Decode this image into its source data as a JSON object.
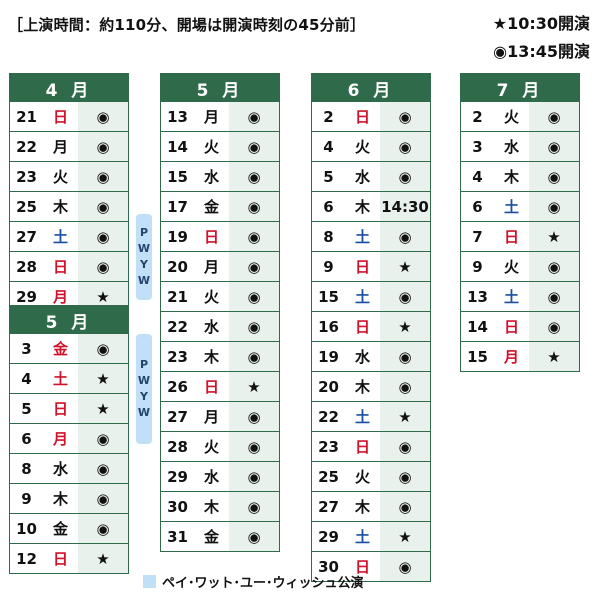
{
  "header": "［上演時間：約110分、開場は開演時刻の45分前］",
  "legend": [
    {
      "symbol": "★",
      "text": "10:30開演"
    },
    {
      "symbol": "◉",
      "text": "13:45開演"
    }
  ],
  "pwyw_label": [
    "P",
    "W",
    "Y",
    "W"
  ],
  "footer": "ペイ･ワット･ユー･ウィッシュ公演",
  "months": [
    {
      "title": "4 月",
      "rows": [
        {
          "day": "21",
          "wd": "日",
          "c": "red",
          "s": "◉"
        },
        {
          "day": "22",
          "wd": "月",
          "c": "",
          "s": "◉"
        },
        {
          "day": "23",
          "wd": "火",
          "c": "",
          "s": "◉"
        },
        {
          "day": "25",
          "wd": "木",
          "c": "",
          "s": "◉"
        },
        {
          "day": "27",
          "wd": "土",
          "c": "blue",
          "s": "◉"
        },
        {
          "day": "28",
          "wd": "日",
          "c": "red",
          "s": "◉"
        },
        {
          "day": "29",
          "wd": "月",
          "c": "red",
          "s": "★"
        }
      ]
    },
    {
      "title": "5 月",
      "rows": [
        {
          "day": "3",
          "wd": "金",
          "c": "red",
          "s": "◉"
        },
        {
          "day": "4",
          "wd": "土",
          "c": "red",
          "s": "★"
        },
        {
          "day": "5",
          "wd": "日",
          "c": "red",
          "s": "★"
        },
        {
          "day": "6",
          "wd": "月",
          "c": "red",
          "s": "◉"
        },
        {
          "day": "8",
          "wd": "水",
          "c": "",
          "s": "◉"
        },
        {
          "day": "9",
          "wd": "木",
          "c": "",
          "s": "◉"
        },
        {
          "day": "10",
          "wd": "金",
          "c": "",
          "s": "◉"
        },
        {
          "day": "12",
          "wd": "日",
          "c": "red",
          "s": "★"
        }
      ]
    },
    {
      "title": "5 月",
      "rows": [
        {
          "day": "13",
          "wd": "月",
          "c": "",
          "s": "◉"
        },
        {
          "day": "14",
          "wd": "火",
          "c": "",
          "s": "◉"
        },
        {
          "day": "15",
          "wd": "水",
          "c": "",
          "s": "◉"
        },
        {
          "day": "17",
          "wd": "金",
          "c": "",
          "s": "◉"
        },
        {
          "day": "19",
          "wd": "日",
          "c": "red",
          "s": "◉"
        },
        {
          "day": "20",
          "wd": "月",
          "c": "",
          "s": "◉"
        },
        {
          "day": "21",
          "wd": "火",
          "c": "",
          "s": "◉"
        },
        {
          "day": "22",
          "wd": "水",
          "c": "",
          "s": "◉"
        },
        {
          "day": "23",
          "wd": "木",
          "c": "",
          "s": "◉"
        },
        {
          "day": "26",
          "wd": "日",
          "c": "red",
          "s": "★"
        },
        {
          "day": "27",
          "wd": "月",
          "c": "",
          "s": "◉"
        },
        {
          "day": "28",
          "wd": "火",
          "c": "",
          "s": "◉"
        },
        {
          "day": "29",
          "wd": "水",
          "c": "",
          "s": "◉"
        },
        {
          "day": "30",
          "wd": "木",
          "c": "",
          "s": "◉"
        },
        {
          "day": "31",
          "wd": "金",
          "c": "",
          "s": "◉"
        }
      ]
    },
    {
      "title": "6 月",
      "rows": [
        {
          "day": "2",
          "wd": "日",
          "c": "red",
          "s": "◉"
        },
        {
          "day": "4",
          "wd": "火",
          "c": "",
          "s": "◉"
        },
        {
          "day": "5",
          "wd": "水",
          "c": "",
          "s": "◉"
        },
        {
          "day": "6",
          "wd": "木",
          "c": "",
          "s": "14:30"
        },
        {
          "day": "8",
          "wd": "土",
          "c": "blue",
          "s": "◉"
        },
        {
          "day": "9",
          "wd": "日",
          "c": "red",
          "s": "★"
        },
        {
          "day": "15",
          "wd": "土",
          "c": "blue",
          "s": "◉"
        },
        {
          "day": "16",
          "wd": "日",
          "c": "red",
          "s": "★"
        },
        {
          "day": "19",
          "wd": "水",
          "c": "",
          "s": "◉"
        },
        {
          "day": "20",
          "wd": "木",
          "c": "",
          "s": "◉"
        },
        {
          "day": "22",
          "wd": "土",
          "c": "blue",
          "s": "★"
        },
        {
          "day": "23",
          "wd": "日",
          "c": "red",
          "s": "◉"
        },
        {
          "day": "25",
          "wd": "火",
          "c": "",
          "s": "◉"
        },
        {
          "day": "27",
          "wd": "木",
          "c": "",
          "s": "◉"
        },
        {
          "day": "29",
          "wd": "土",
          "c": "blue",
          "s": "★"
        },
        {
          "day": "30",
          "wd": "日",
          "c": "red",
          "s": "◉"
        }
      ]
    },
    {
      "title": "7 月",
      "rows": [
        {
          "day": "2",
          "wd": "火",
          "c": "",
          "s": "◉"
        },
        {
          "day": "3",
          "wd": "水",
          "c": "",
          "s": "◉"
        },
        {
          "day": "4",
          "wd": "木",
          "c": "",
          "s": "◉"
        },
        {
          "day": "6",
          "wd": "土",
          "c": "blue",
          "s": "◉"
        },
        {
          "day": "7",
          "wd": "日",
          "c": "red",
          "s": "★"
        },
        {
          "day": "9",
          "wd": "火",
          "c": "",
          "s": "◉"
        },
        {
          "day": "13",
          "wd": "土",
          "c": "blue",
          "s": "◉"
        },
        {
          "day": "14",
          "wd": "日",
          "c": "red",
          "s": "◉"
        },
        {
          "day": "15",
          "wd": "月",
          "c": "red",
          "s": "★"
        }
      ]
    }
  ]
}
